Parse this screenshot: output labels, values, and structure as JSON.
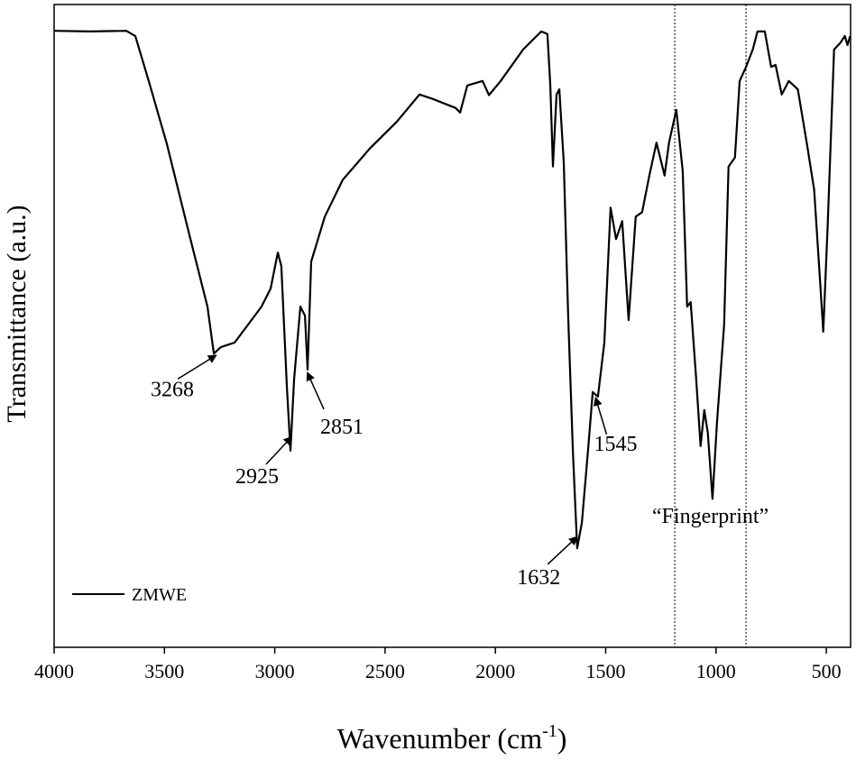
{
  "chart_data": {
    "type": "line",
    "x_label": "Wavenumber (cm",
    "x_label_sup": "-1",
    "x_label_end": ")",
    "y_label": "Transmittance (a.u.)",
    "xlim": [
      4000,
      390
    ],
    "ylim": [
      0,
      100
    ],
    "xticks": [
      4000,
      3500,
      3000,
      2500,
      2000,
      1500,
      1000,
      500
    ],
    "legend": "lower left",
    "series": [
      {
        "name": "ZMWE",
        "color": "#000000",
        "x": [
          4000,
          3836,
          3673,
          3632,
          3571,
          3489,
          3387,
          3305,
          3276,
          3244,
          3182,
          3121,
          3060,
          3019,
          2986,
          2970,
          2945,
          2929,
          2912,
          2884,
          2863,
          2851,
          2835,
          2773,
          2692,
          2569,
          2446,
          2344,
          2283,
          2180,
          2160,
          2127,
          2058,
          2029,
          1976,
          1874,
          1792,
          1764,
          1751,
          1739,
          1723,
          1710,
          1690,
          1670,
          1649,
          1629,
          1608,
          1580,
          1559,
          1535,
          1506,
          1478,
          1453,
          1425,
          1396,
          1364,
          1335,
          1302,
          1270,
          1233,
          1213,
          1180,
          1151,
          1131,
          1115,
          1090,
          1070,
          1053,
          1037,
          1016,
          996,
          963,
          943,
          914,
          893,
          865,
          833,
          812,
          779,
          750,
          730,
          702,
          670,
          629,
          588,
          555,
          526,
          514,
          494,
          465,
          437,
          416,
          404,
          392
        ],
        "values": [
          95.9,
          95.8,
          95.9,
          95.1,
          88.1,
          78.3,
          64.2,
          53.0,
          45.7,
          46.7,
          47.4,
          50.2,
          53.0,
          55.8,
          61.4,
          59.3,
          40.4,
          30.6,
          41.8,
          53.0,
          51.6,
          43.2,
          60.0,
          67.0,
          72.7,
          77.6,
          81.8,
          86.0,
          85.3,
          83.9,
          83.2,
          87.4,
          88.1,
          85.9,
          88.1,
          93.0,
          95.8,
          95.4,
          87.4,
          74.8,
          86.0,
          86.8,
          75.5,
          51.6,
          30.6,
          15.4,
          19.4,
          30.6,
          39.7,
          39.0,
          47.4,
          68.4,
          63.5,
          66.3,
          50.9,
          67.0,
          67.7,
          73.4,
          78.5,
          73.4,
          78.5,
          83.6,
          74.1,
          53.0,
          53.7,
          41.8,
          31.3,
          36.9,
          33.4,
          23.1,
          34.8,
          50.2,
          74.8,
          76.2,
          88.1,
          90.2,
          93.0,
          95.8,
          95.8,
          90.3,
          90.6,
          86.0,
          88.1,
          86.8,
          78.3,
          71.2,
          55.8,
          49.1,
          65.6,
          93.0,
          94.0,
          95.1,
          93.7,
          95.1
        ]
      }
    ],
    "annotations": [
      {
        "x": 3268,
        "text": "3268"
      },
      {
        "x": 2925,
        "text": "2925"
      },
      {
        "x": 2851,
        "text": "2851"
      },
      {
        "x": 1632,
        "text": "1632"
      },
      {
        "x": 1545,
        "text": "1545"
      }
    ],
    "fingerprint_region": {
      "label": "“Fingerprint”",
      "range": [
        1187,
        864
      ]
    }
  }
}
